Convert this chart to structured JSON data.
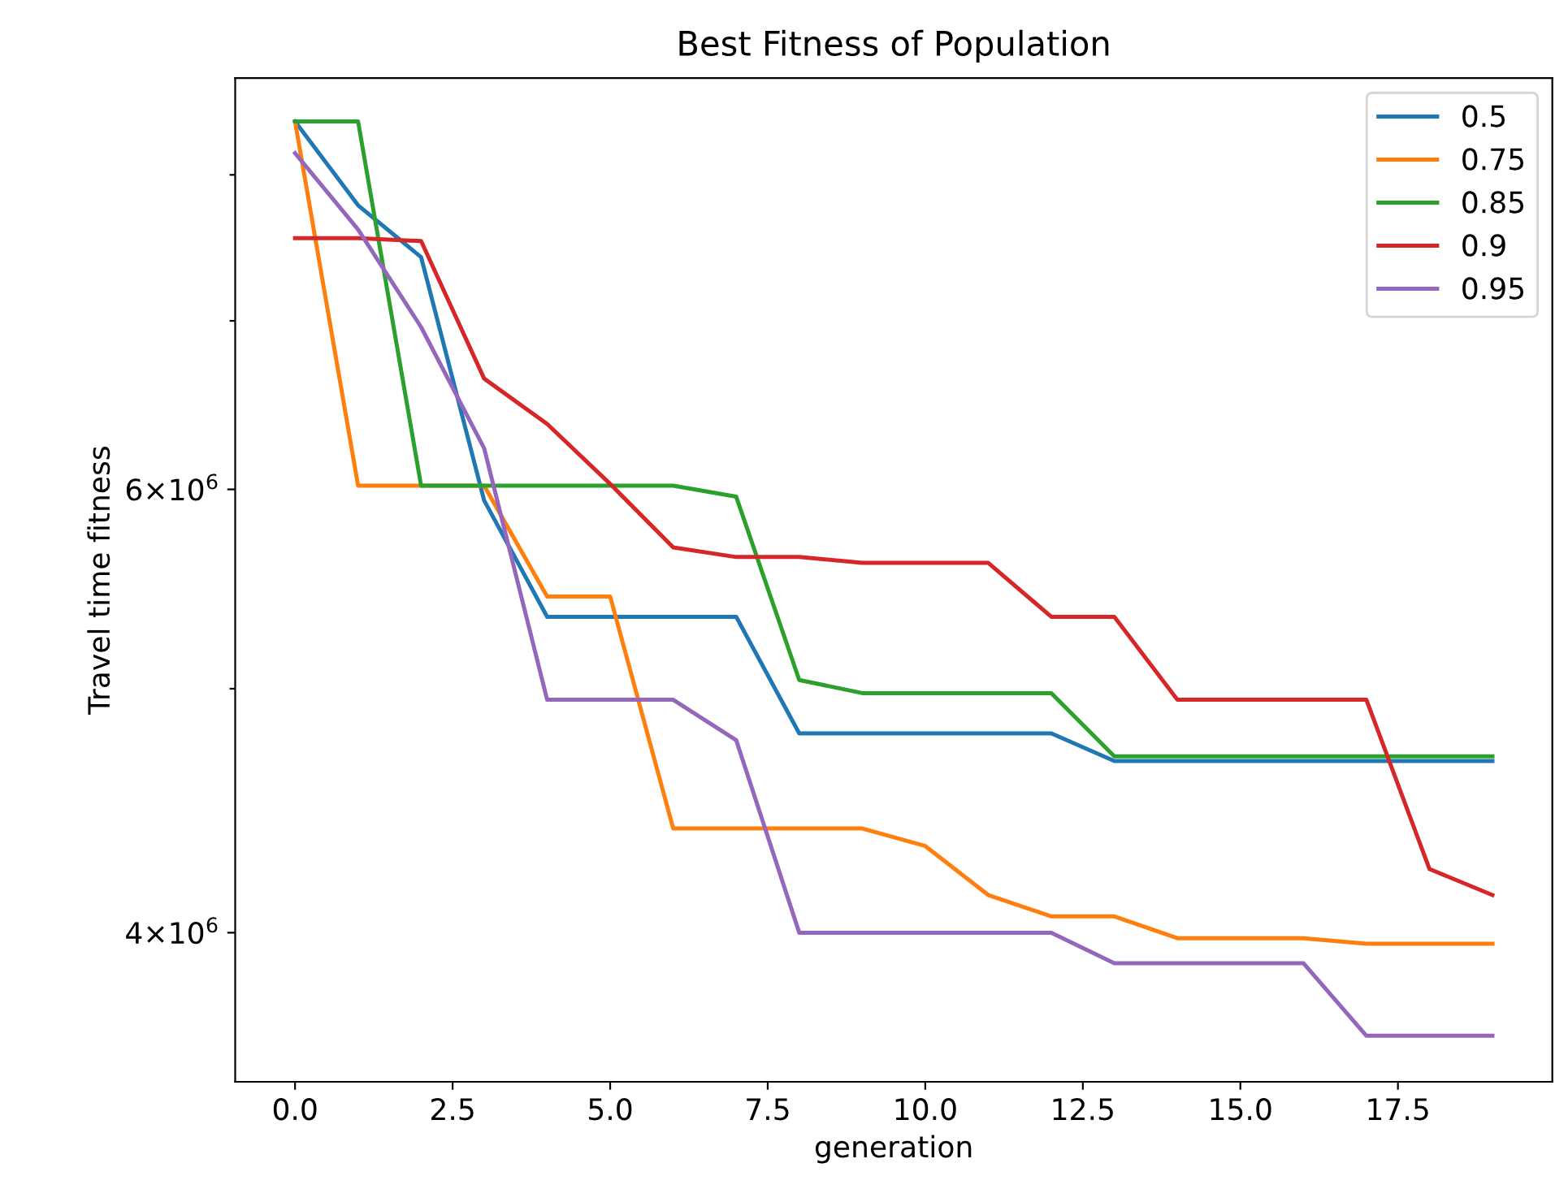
{
  "chart_data": {
    "type": "line",
    "title": "Best Fitness of Population",
    "xlabel": "generation",
    "ylabel": "Travel time fitness",
    "x": [
      0,
      1,
      2,
      3,
      4,
      5,
      6,
      7,
      8,
      9,
      10,
      11,
      12,
      13,
      14,
      15,
      16,
      17,
      18,
      19
    ],
    "series": [
      {
        "name": "0.5",
        "color": "#1f77b4",
        "values": [
          8400000,
          7780000,
          7420000,
          5940000,
          5340000,
          5340000,
          5340000,
          5340000,
          4800000,
          4800000,
          4800000,
          4800000,
          4800000,
          4680000,
          4680000,
          4680000,
          4680000,
          4680000,
          4680000,
          4680000
        ]
      },
      {
        "name": "0.75",
        "color": "#ff7f0e",
        "values": [
          8400000,
          6020000,
          6020000,
          6020000,
          5440000,
          5440000,
          4400000,
          4400000,
          4400000,
          4400000,
          4330000,
          4140000,
          4060000,
          4060000,
          3980000,
          3980000,
          3980000,
          3960000,
          3960000,
          3960000
        ]
      },
      {
        "name": "0.85",
        "color": "#2ca02c",
        "values": [
          8400000,
          8400000,
          6020000,
          6020000,
          6020000,
          6020000,
          6020000,
          5960000,
          5040000,
          4980000,
          4980000,
          4980000,
          4980000,
          4700000,
          4700000,
          4700000,
          4700000,
          4700000,
          4700000,
          4700000
        ]
      },
      {
        "name": "0.9",
        "color": "#d62728",
        "values": [
          7550000,
          7550000,
          7530000,
          6640000,
          6370000,
          6030000,
          5690000,
          5640000,
          5640000,
          5610000,
          5610000,
          5610000,
          5340000,
          5340000,
          4950000,
          4950000,
          4950000,
          4950000,
          4240000,
          4140000
        ]
      },
      {
        "name": "0.95",
        "color": "#9467bd",
        "values": [
          8160000,
          7610000,
          6960000,
          6230000,
          4950000,
          4950000,
          4950000,
          4770000,
          4000000,
          4000000,
          4000000,
          4000000,
          4000000,
          3890000,
          3890000,
          3890000,
          3890000,
          3640000,
          3640000,
          3640000
        ]
      }
    ],
    "log": "y",
    "xlim": [
      -0.95,
      19.95
    ],
    "ylim": [
      3490000,
      8740000
    ],
    "xticks": [
      {
        "value": 0,
        "label": "0.0"
      },
      {
        "value": 2.5,
        "label": "2.5"
      },
      {
        "value": 5,
        "label": "5.0"
      },
      {
        "value": 7.5,
        "label": "7.5"
      },
      {
        "value": 10,
        "label": "10.0"
      },
      {
        "value": 12.5,
        "label": "12.5"
      },
      {
        "value": 15,
        "label": "15.0"
      },
      {
        "value": 17.5,
        "label": "17.5"
      }
    ],
    "yticks": [
      {
        "value": 4000000,
        "label": "4×10$^{6}$"
      },
      {
        "value": 5000000,
        "label": null
      },
      {
        "value": 6000000,
        "label": "6×10$^{6}$"
      },
      {
        "value": 7000000,
        "label": null
      },
      {
        "value": 8000000,
        "label": null
      }
    ],
    "legend": "top right",
    "grid": false,
    "marker": "none",
    "line_style": "solid"
  }
}
